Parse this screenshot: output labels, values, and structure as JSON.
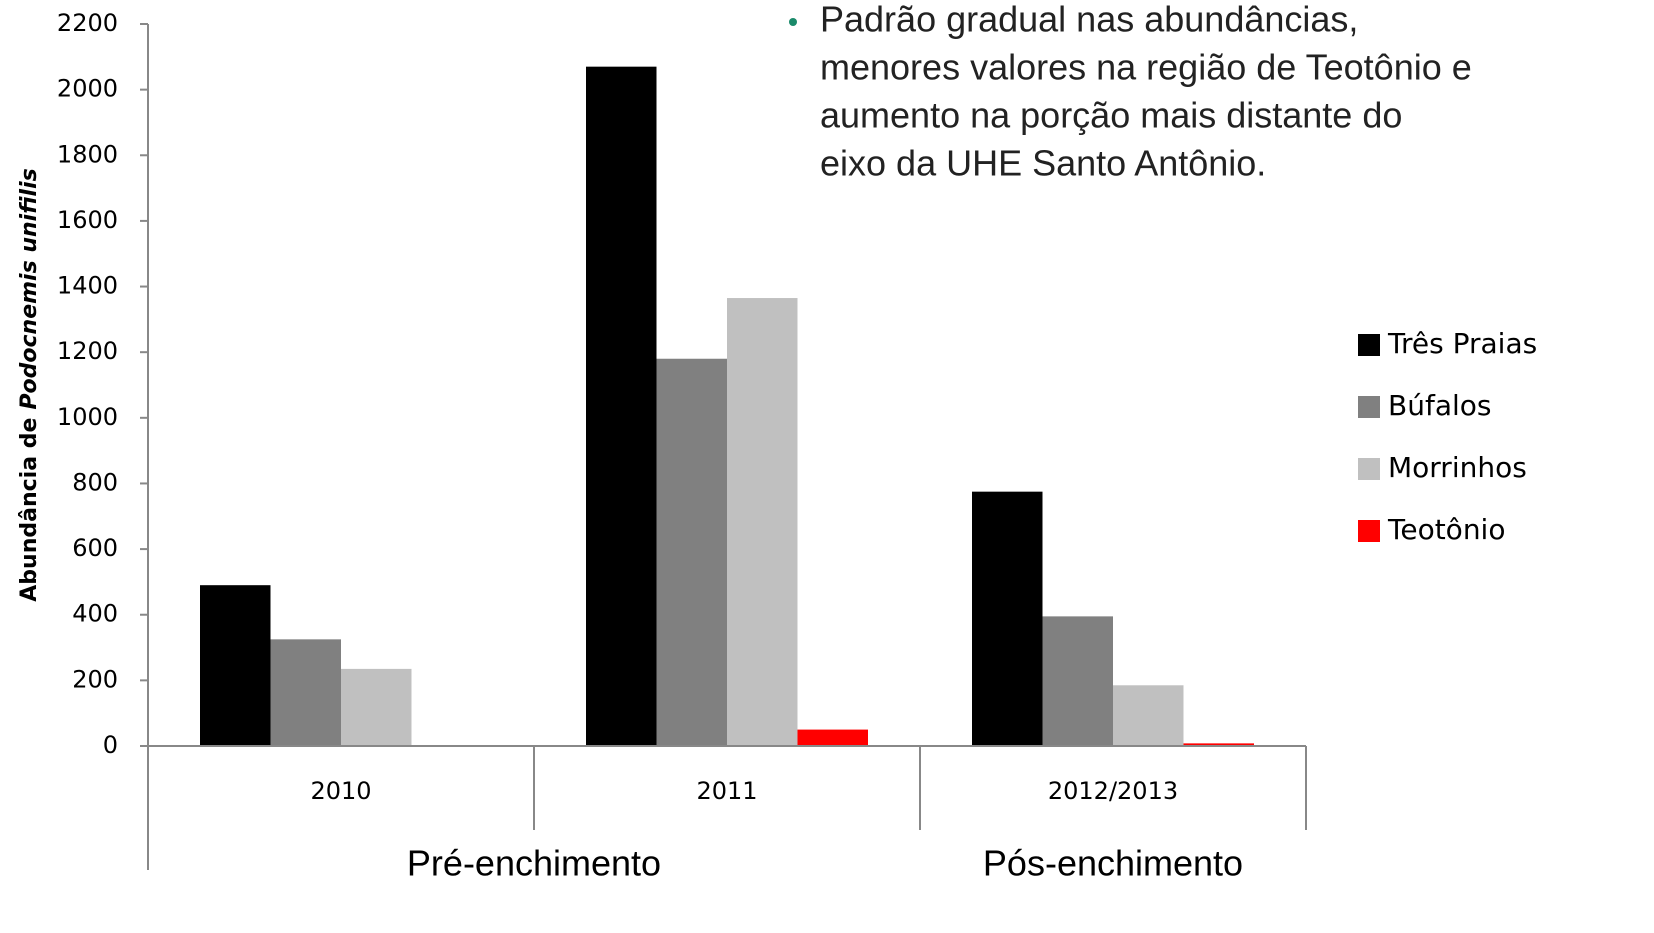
{
  "chart_data": {
    "type": "bar",
    "y_label": [
      "Abundância de",
      "Podocnemis unifilis"
    ],
    "annotation": [
      "Padrão gradual nas abundâncias,",
      "menores valores na região de Teotônio e",
      "aumento na porção mais distante do",
      "eixo da UHE Santo Antônio."
    ],
    "categories": [
      "2010",
      "2011",
      "2012/2013"
    ],
    "period_labels": [
      "Pré-enchimento",
      "Pós-enchimento"
    ],
    "series": [
      {
        "name": "Três Praias",
        "color": "#000000",
        "values": [
          490,
          2070,
          775
        ]
      },
      {
        "name": "Búfalos",
        "color": "#808080",
        "values": [
          325,
          1180,
          395
        ]
      },
      {
        "name": "Morrinhos",
        "color": "#c0c0c0",
        "values": [
          235,
          1365,
          185
        ]
      },
      {
        "name": "Teotônio",
        "color": "#ff0000",
        "values": [
          0,
          50,
          8
        ]
      }
    ],
    "ylim": [
      0,
      2200
    ],
    "yticks": [
      0,
      200,
      400,
      600,
      800,
      1000,
      1200,
      1400,
      1600,
      1800,
      2000,
      2200
    ],
    "grid": false,
    "legend": "right"
  }
}
